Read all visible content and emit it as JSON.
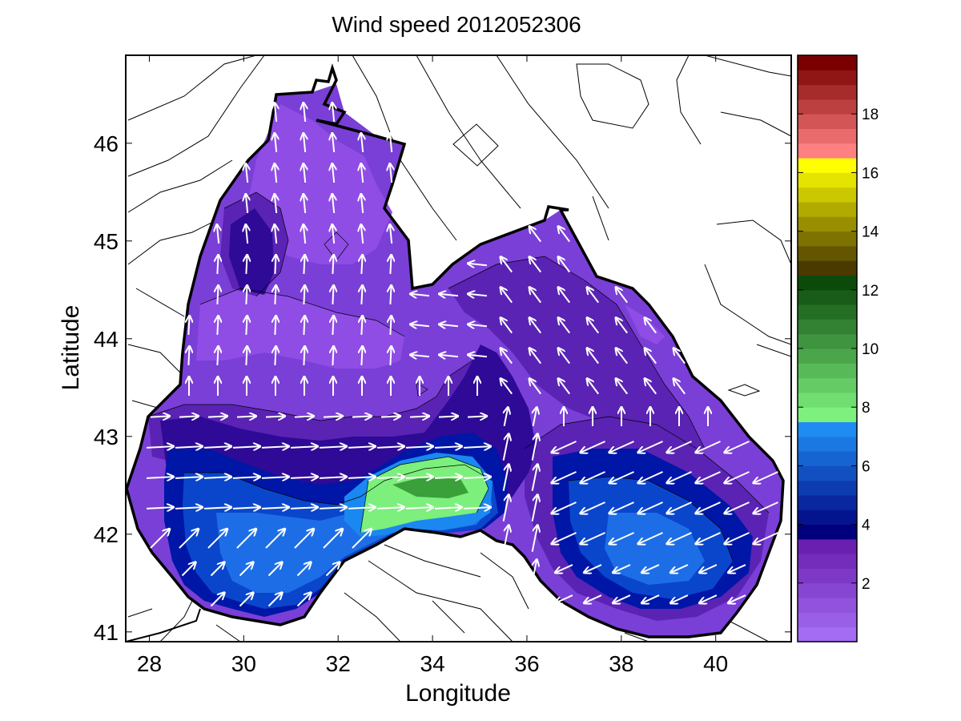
{
  "figure": {
    "title": "Wind speed 2012052306",
    "xlabel": "Longitude",
    "ylabel": "Latitude",
    "sea_colors": {
      "land_bg": "#ffffff",
      "c1": "#8f4de6",
      "c2": "#7a3fd6",
      "c3": "#5a23b4",
      "c4": "#2e0a96",
      "c5": "#0016a6",
      "c6": "#0a46cc",
      "c7": "#1d6ee6",
      "c8": "#1a88f0",
      "c9": "#7cef7c",
      "c10": "#3aa03a",
      "arrow": "#ffffff"
    }
  },
  "chart_data": {
    "type": "heatmap",
    "xlim": [
      27.5,
      41.6
    ],
    "ylim": [
      40.9,
      46.9
    ],
    "xticks": [
      "28",
      "30",
      "32",
      "34",
      "36",
      "38",
      "40"
    ],
    "yticks": [
      "41",
      "42",
      "43",
      "44",
      "45",
      "46"
    ],
    "colorbar": {
      "range": [
        0,
        20
      ],
      "ticks": [
        "2",
        "4",
        "6",
        "8",
        "10",
        "12",
        "14",
        "16",
        "18"
      ],
      "bands": [
        {
          "from": 0,
          "to": 3.5,
          "color_top": "#6a1fb0",
          "color_bottom": "#a46cf2"
        },
        {
          "from": 3.5,
          "to": 7.5,
          "color_top": "#1f8cf4",
          "color_bottom": "#00007e"
        },
        {
          "from": 7.5,
          "to": 12.5,
          "color_top": "#0c4a0c",
          "color_bottom": "#7ef07e"
        },
        {
          "from": 12.5,
          "to": 16.5,
          "color_top": "#ffff00",
          "color_bottom": "#4a3a00"
        },
        {
          "from": 16.5,
          "to": 20,
          "color_top": "#7a0000",
          "color_bottom": "#ff8080"
        }
      ]
    }
  }
}
